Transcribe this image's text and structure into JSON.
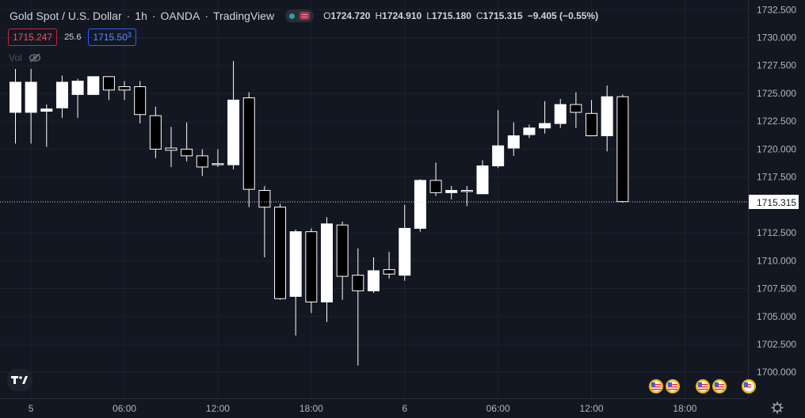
{
  "header": {
    "symbol": "Gold Spot / U.S. Dollar",
    "interval": "1h",
    "exchange": "OANDA",
    "platform": "TradingView",
    "ohlc": {
      "o_key": "O",
      "o": "1724.720",
      "h_key": "H",
      "h": "1724.910",
      "l_key": "L",
      "l": "1715.180",
      "c_key": "C",
      "c": "1715.315",
      "change": "−9.405 (−0.55%)"
    }
  },
  "quote": {
    "bid": "1715.247",
    "spread": "25.6",
    "ask_main": "1715.50",
    "ask_sup": "3"
  },
  "volume": {
    "label": "Vol",
    "icon": "eye-crossed-icon"
  },
  "price_axis": {
    "labels": [
      "1732.500",
      "1730.000",
      "1727.500",
      "1725.000",
      "1722.500",
      "1720.000",
      "1717.500",
      "1712.500",
      "1710.000",
      "1707.500",
      "1705.000",
      "1702.500",
      "1700.000"
    ],
    "current_price": "1715.315"
  },
  "time_axis": {
    "labels": [
      "5",
      "06:00",
      "12:00",
      "18:00",
      "6",
      "06:00",
      "12:00",
      "18:00"
    ]
  },
  "colors": {
    "background": "#131722",
    "up": "#ffffff",
    "down": "#000000",
    "wick": "#ffffff",
    "text": "#d1d4dc"
  },
  "icons": {
    "logo": "tradingview-logo",
    "settings": "gear-icon",
    "events": "us-flag-event-icon"
  },
  "chart_data": {
    "type": "candlestick",
    "title": "Gold Spot / U.S. Dollar",
    "ylim": [
      1699,
      1733
    ],
    "bars": [
      {
        "o": 1723.3,
        "h": 1727.2,
        "l": 1720.5,
        "c": 1726.0
      },
      {
        "o": 1723.3,
        "h": 1727.2,
        "l": 1720.5,
        "c": 1726.0
      },
      {
        "o": 1723.4,
        "h": 1724.0,
        "l": 1720.2,
        "c": 1723.6
      },
      {
        "o": 1723.7,
        "h": 1726.6,
        "l": 1722.8,
        "c": 1726.0
      },
      {
        "o": 1724.9,
        "h": 1726.3,
        "l": 1722.8,
        "c": 1726.1
      },
      {
        "o": 1724.9,
        "h": 1726.5,
        "l": 1724.9,
        "c": 1726.5
      },
      {
        "o": 1726.5,
        "h": 1726.5,
        "l": 1724.4,
        "c": 1725.3
      },
      {
        "o": 1725.6,
        "h": 1726.1,
        "l": 1724.4,
        "c": 1725.3
      },
      {
        "o": 1725.6,
        "h": 1726.1,
        "l": 1722.3,
        "c": 1723.1
      },
      {
        "o": 1723.0,
        "h": 1723.8,
        "l": 1719.2,
        "c": 1720.0
      },
      {
        "o": 1720.1,
        "h": 1722.0,
        "l": 1718.4,
        "c": 1719.9
      },
      {
        "o": 1720.0,
        "h": 1722.4,
        "l": 1718.9,
        "c": 1719.4
      },
      {
        "o": 1719.4,
        "h": 1720.0,
        "l": 1717.6,
        "c": 1718.4
      },
      {
        "o": 1718.7,
        "h": 1720.0,
        "l": 1718.4,
        "c": 1718.6
      },
      {
        "o": 1718.6,
        "h": 1727.9,
        "l": 1718.2,
        "c": 1724.4
      },
      {
        "o": 1724.6,
        "h": 1725.1,
        "l": 1714.8,
        "c": 1716.4
      },
      {
        "o": 1716.3,
        "h": 1716.7,
        "l": 1710.3,
        "c": 1714.8
      },
      {
        "o": 1714.8,
        "h": 1715.1,
        "l": 1706.5,
        "c": 1706.6
      },
      {
        "o": 1706.8,
        "h": 1712.8,
        "l": 1703.3,
        "c": 1712.6
      },
      {
        "o": 1712.6,
        "h": 1712.9,
        "l": 1705.3,
        "c": 1706.3
      },
      {
        "o": 1706.3,
        "h": 1713.9,
        "l": 1704.5,
        "c": 1713.3
      },
      {
        "o": 1713.2,
        "h": 1713.5,
        "l": 1706.5,
        "c": 1708.6
      },
      {
        "o": 1708.7,
        "h": 1711.1,
        "l": 1700.6,
        "c": 1707.3
      },
      {
        "o": 1707.3,
        "h": 1710.3,
        "l": 1707.1,
        "c": 1709.1
      },
      {
        "o": 1709.2,
        "h": 1710.8,
        "l": 1708.4,
        "c": 1708.8
      },
      {
        "o": 1708.7,
        "h": 1715.0,
        "l": 1708.2,
        "c": 1712.9
      },
      {
        "o": 1712.9,
        "h": 1717.3,
        "l": 1712.6,
        "c": 1717.2
      },
      {
        "o": 1717.2,
        "h": 1718.8,
        "l": 1715.8,
        "c": 1716.1
      },
      {
        "o": 1716.1,
        "h": 1716.7,
        "l": 1715.5,
        "c": 1716.3
      },
      {
        "o": 1716.3,
        "h": 1716.7,
        "l": 1714.9,
        "c": 1716.2
      },
      {
        "o": 1716.0,
        "h": 1719.0,
        "l": 1716.0,
        "c": 1718.5
      },
      {
        "o": 1718.5,
        "h": 1723.5,
        "l": 1718.3,
        "c": 1720.3
      },
      {
        "o": 1720.1,
        "h": 1722.4,
        "l": 1719.4,
        "c": 1721.2
      },
      {
        "o": 1721.3,
        "h": 1722.2,
        "l": 1721.0,
        "c": 1721.9
      },
      {
        "o": 1721.9,
        "h": 1724.3,
        "l": 1721.4,
        "c": 1722.3
      },
      {
        "o": 1722.3,
        "h": 1724.5,
        "l": 1721.9,
        "c": 1724.0
      },
      {
        "o": 1724.0,
        "h": 1725.1,
        "l": 1721.9,
        "c": 1723.3
      },
      {
        "o": 1723.2,
        "h": 1724.4,
        "l": 1721.2,
        "c": 1721.2
      },
      {
        "o": 1721.2,
        "h": 1725.7,
        "l": 1719.8,
        "c": 1724.7
      },
      {
        "o": 1724.7,
        "h": 1724.9,
        "l": 1715.2,
        "c": 1715.3
      }
    ]
  }
}
